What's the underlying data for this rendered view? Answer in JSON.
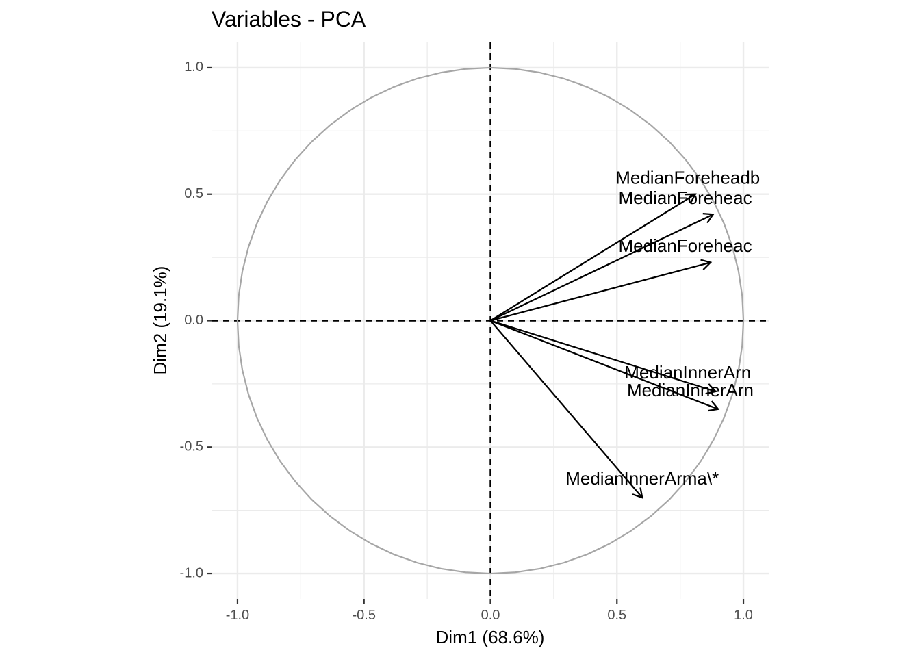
{
  "colors": {
    "grid": "#ebebeb",
    "circle": "#a6a6a6",
    "arrow": "#000000",
    "tick": "#333333",
    "tick_label": "#4d4d4d"
  },
  "chart_data": {
    "type": "scatter",
    "subtype": "pca-variable-correlation-circle",
    "title": "Variables - PCA",
    "xlabel": "Dim1 (68.6%)",
    "ylabel": "Dim2 (19.1%)",
    "xlim": [
      -1.1,
      1.1
    ],
    "ylim": [
      -1.1,
      1.1
    ],
    "x_ticks": [
      -1.0,
      -0.5,
      0.0,
      0.5,
      1.0
    ],
    "x_tick_labels": [
      "-1.0",
      "-0.5",
      "0.0",
      "0.5",
      "1.0"
    ],
    "y_ticks": [
      -1.0,
      -0.5,
      0.0,
      0.5,
      1.0
    ],
    "y_tick_labels": [
      "-1.0",
      "-0.5",
      "0.0",
      "0.5",
      "1.0"
    ],
    "grid": true,
    "unit_circle": true,
    "reference_lines": [
      {
        "axis": "x",
        "value": 0,
        "style": "dashed"
      },
      {
        "axis": "y",
        "value": 0,
        "style": "dashed"
      }
    ],
    "variables": [
      {
        "label": "MedianForeheadb",
        "x": 0.81,
        "y": 0.5,
        "label_x": 0.78,
        "label_y": 0.56
      },
      {
        "label": "MedianForeheac",
        "x": 0.88,
        "y": 0.42,
        "label_x": 0.77,
        "label_y": 0.48
      },
      {
        "label": "MedianForeheac",
        "x": 0.87,
        "y": 0.23,
        "label_x": 0.77,
        "label_y": 0.29
      },
      {
        "label": "MedianInnerArn",
        "x": 0.89,
        "y": -0.28,
        "label_x": 0.78,
        "label_y": -0.21
      },
      {
        "label": "MedianInnerArn",
        "x": 0.9,
        "y": -0.35,
        "label_x": 0.79,
        "label_y": -0.28
      },
      {
        "label": "MedianInnerArma\\*",
        "x": 0.6,
        "y": -0.7,
        "label_x": 0.6,
        "label_y": -0.63
      }
    ]
  }
}
